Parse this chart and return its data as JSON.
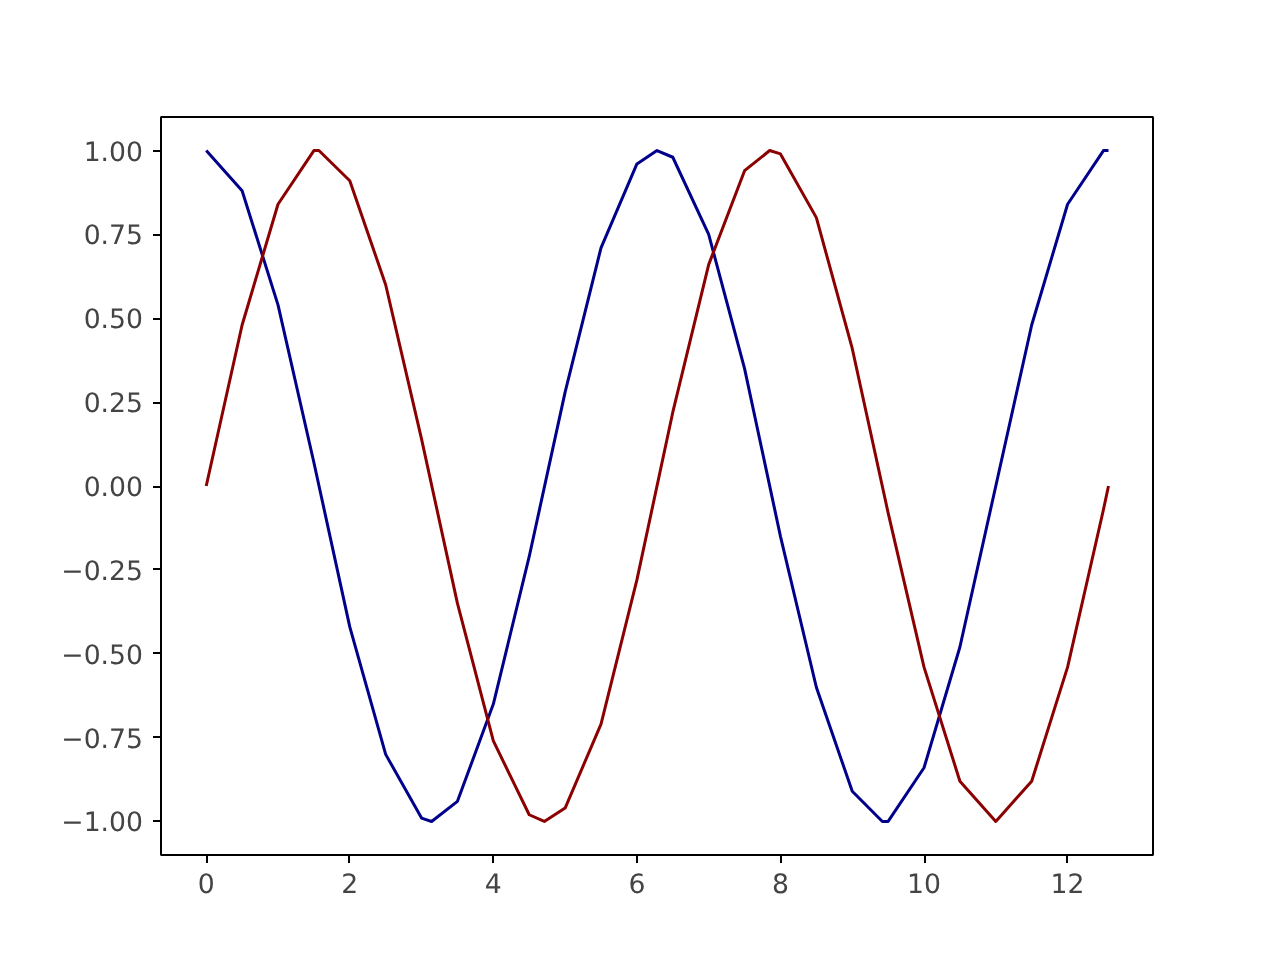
{
  "chart_data": {
    "type": "line",
    "xlim": [
      -0.63,
      13.19
    ],
    "ylim": [
      -1.1,
      1.1
    ],
    "xticks": [
      0,
      2,
      4,
      6,
      8,
      10,
      12
    ],
    "yticks": [
      {
        "value": -1,
        "label": "−1.00"
      },
      {
        "value": -0.75,
        "label": "−0.75"
      },
      {
        "value": -0.5,
        "label": "−0.50"
      },
      {
        "value": -0.25,
        "label": "−0.25"
      },
      {
        "value": 0,
        "label": "0.00"
      },
      {
        "value": 0.25,
        "label": "0.25"
      },
      {
        "value": 0.5,
        "label": "0.50"
      },
      {
        "value": 0.75,
        "label": "0.75"
      },
      {
        "value": 1,
        "label": "1.00"
      }
    ],
    "grid": false,
    "marker": "none",
    "line_style": "solid",
    "series": [
      {
        "color": "#00008b",
        "x": [
          0,
          0.5,
          1,
          1.5,
          2,
          2.5,
          3,
          3.14,
          3.5,
          4,
          4.5,
          5,
          5.5,
          6,
          6.28,
          6.5,
          7,
          7.5,
          8,
          8.5,
          9,
          9.42,
          9.5,
          10,
          10.5,
          11,
          11.5,
          12,
          12.5,
          12.57
        ],
        "values": [
          1,
          0.88,
          0.54,
          0.07,
          -0.42,
          -0.8,
          -0.99,
          -1,
          -0.94,
          -0.65,
          -0.21,
          0.28,
          0.71,
          0.96,
          1,
          0.98,
          0.75,
          0.35,
          -0.15,
          -0.6,
          -0.91,
          -1,
          -1,
          -0.84,
          -0.48,
          0,
          0.48,
          0.84,
          1,
          1
        ]
      },
      {
        "color": "#8b0000",
        "x": [
          0,
          0.5,
          1,
          1.5,
          1.57,
          2,
          2.5,
          3,
          3.5,
          4,
          4.5,
          4.71,
          5,
          5.5,
          6,
          6.5,
          7,
          7.5,
          7.85,
          8,
          8.5,
          9,
          9.5,
          10,
          10.5,
          11,
          11.5,
          12,
          12.5,
          12.57
        ],
        "values": [
          0,
          0.48,
          0.84,
          1,
          1,
          0.91,
          0.6,
          0.14,
          -0.35,
          -0.76,
          -0.98,
          -1,
          -0.96,
          -0.71,
          -0.28,
          0.22,
          0.66,
          0.94,
          1,
          0.99,
          0.8,
          0.41,
          -0.08,
          -0.54,
          -0.88,
          -1,
          -0.88,
          -0.54,
          -0.07,
          0
        ]
      }
    ]
  }
}
